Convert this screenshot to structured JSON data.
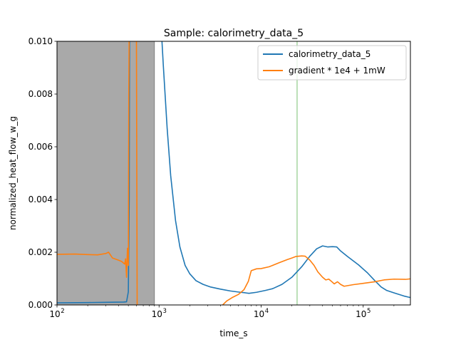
{
  "chart_data": {
    "type": "line",
    "title": "Sample: calorimetry_data_5",
    "xlabel": "time_s",
    "ylabel": "normalized_heat_flow_w_g",
    "xscale": "log",
    "xlim": [
      100,
      290000
    ],
    "ylim": [
      0,
      0.01
    ],
    "grid": false,
    "legend_position": "top-right",
    "x_ticks": [
      {
        "value": 100,
        "base": "10",
        "exp": "2"
      },
      {
        "value": 1000,
        "base": "10",
        "exp": "3"
      },
      {
        "value": 10000,
        "base": "10",
        "exp": "4"
      },
      {
        "value": 100000,
        "base": "10",
        "exp": "5"
      }
    ],
    "y_ticks": [
      {
        "value": 0,
        "label": "0.000"
      },
      {
        "value": 0.002,
        "label": "0.002"
      },
      {
        "value": 0.004,
        "label": "0.004"
      },
      {
        "value": 0.006,
        "label": "0.006"
      },
      {
        "value": 0.008,
        "label": "0.008"
      },
      {
        "value": 0.01,
        "label": "0.010"
      }
    ],
    "shaded_region": {
      "x_start": 100,
      "x_end": 900,
      "color": "#a9a9a9"
    },
    "vertical_line": {
      "x": 22500,
      "color": "#a6d6a0"
    },
    "series": [
      {
        "name": "calorimetry_data_5",
        "color": "#1f77b4",
        "points": [
          [
            100,
            8e-05
          ],
          [
            200,
            9e-05
          ],
          [
            300,
            0.0001
          ],
          [
            450,
            0.00011
          ],
          [
            480,
            0.00012
          ],
          [
            500,
            0.0005
          ],
          [
            510,
            0.004
          ],
          [
            520,
            0.02
          ],
          [
            1050,
            0.0105
          ],
          [
            1100,
            0.0091
          ],
          [
            1200,
            0.0067
          ],
          [
            1300,
            0.0049
          ],
          [
            1450,
            0.0032
          ],
          [
            1600,
            0.0022
          ],
          [
            1800,
            0.0015
          ],
          [
            2000,
            0.00118
          ],
          [
            2300,
            0.00092
          ],
          [
            2700,
            0.00078
          ],
          [
            3200,
            0.00068
          ],
          [
            4000,
            0.0006
          ],
          [
            5000,
            0.00053
          ],
          [
            6000,
            0.00049
          ],
          [
            7000,
            0.00046
          ],
          [
            7600,
            0.00044
          ],
          [
            9000,
            0.00048
          ],
          [
            11000,
            0.00055
          ],
          [
            13000,
            0.00062
          ],
          [
            16000,
            0.00078
          ],
          [
            20000,
            0.00105
          ],
          [
            25000,
            0.00145
          ],
          [
            30000,
            0.00185
          ],
          [
            35000,
            0.00213
          ],
          [
            40000,
            0.00224
          ],
          [
            45000,
            0.0022
          ],
          [
            50000,
            0.00221
          ],
          [
            55000,
            0.0022
          ],
          [
            60000,
            0.00205
          ],
          [
            70000,
            0.00184
          ],
          [
            90000,
            0.00152
          ],
          [
            110000,
            0.00122
          ],
          [
            130000,
            0.00092
          ],
          [
            150000,
            0.00068
          ],
          [
            170000,
            0.00055
          ],
          [
            200000,
            0.00046
          ],
          [
            250000,
            0.00034
          ],
          [
            290000,
            0.00028
          ]
        ]
      },
      {
        "name": "gradient * 1e4 + 1mW",
        "color": "#ff7f0e",
        "points": [
          [
            100,
            0.00192
          ],
          [
            150,
            0.00193
          ],
          [
            200,
            0.00191
          ],
          [
            250,
            0.0019
          ],
          [
            300,
            0.00195
          ],
          [
            320,
            0.002
          ],
          [
            350,
            0.00178
          ],
          [
            400,
            0.0017
          ],
          [
            430,
            0.00165
          ],
          [
            460,
            0.00155
          ],
          [
            470,
            0.00175
          ],
          [
            480,
            0.00105
          ],
          [
            490,
            0.00215
          ],
          [
            500,
            0.0015
          ],
          [
            505,
            0.008
          ],
          [
            510,
            0.0105
          ],
          null,
          [
            600,
            0.0105
          ],
          [
            605,
            0.005
          ],
          [
            610,
            0.0
          ],
          null,
          [
            4200,
            0.0
          ],
          [
            4600,
            0.00015
          ],
          [
            5200,
            0.00028
          ],
          [
            6000,
            0.0004
          ],
          [
            6800,
            0.00058
          ],
          [
            7500,
            0.0009
          ],
          [
            8000,
            0.0013
          ],
          [
            9000,
            0.00137
          ],
          [
            10000,
            0.00138
          ],
          [
            12000,
            0.00145
          ],
          [
            15000,
            0.0016
          ],
          [
            18000,
            0.00172
          ],
          [
            20000,
            0.00178
          ],
          [
            22000,
            0.00184
          ],
          [
            25000,
            0.00186
          ],
          [
            27000,
            0.00185
          ],
          [
            30000,
            0.0017
          ],
          [
            33000,
            0.0015
          ],
          [
            36000,
            0.00125
          ],
          [
            40000,
            0.00105
          ],
          [
            43000,
            0.00095
          ],
          [
            46000,
            0.00098
          ],
          [
            48000,
            0.00092
          ],
          [
            52000,
            0.0008
          ],
          [
            56000,
            0.00088
          ],
          [
            60000,
            0.00078
          ],
          [
            65000,
            0.00071
          ],
          [
            80000,
            0.00077
          ],
          [
            100000,
            0.00082
          ],
          [
            130000,
            0.00088
          ],
          [
            160000,
            0.00095
          ],
          [
            200000,
            0.00098
          ],
          [
            260000,
            0.00097
          ],
          [
            290000,
            0.00099
          ]
        ]
      }
    ]
  }
}
